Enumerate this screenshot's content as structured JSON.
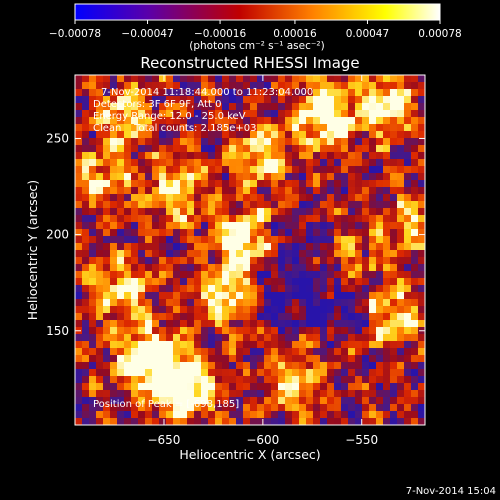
{
  "chart_data": {
    "type": "heatmap",
    "title": "Reconstructed RHESSI Image",
    "xlabel": "Heliocentric X (arcsec)",
    "ylabel": "Heliocentric Y (arcsec)",
    "xlim": [
      -695,
      -518
    ],
    "ylim": [
      101,
      283
    ],
    "x_ticks": [
      -650,
      -600,
      -550
    ],
    "y_ticks": [
      150,
      200,
      250
    ],
    "colorbar": {
      "range": [
        -0.00078,
        0.00078
      ],
      "tick_values": [
        -0.00078,
        -0.00047,
        -0.00016,
        0.00016,
        0.00047,
        0.00078
      ],
      "tick_labels": [
        "-0.00078",
        "-0.00047",
        "-0.00016",
        "0.00016",
        "0.00047",
        "0.00078"
      ],
      "units": "(photons cm⁻² s⁻¹ asec⁻²)",
      "colors": [
        "#0000ff",
        "#5a00aa",
        "#c00000",
        "#ff8000",
        "#ffff00",
        "#ffffff"
      ]
    },
    "annotations": [
      "7-Nov-2014 11:18:44.000 to 11:23:04.000",
      "Detectors: 3F 6F 9F, Att 0",
      "Energy Range: 12.0 - 25.0 keV",
      "Clean    Total counts: 2.185e+03"
    ],
    "peak_label": "Position of Peak = [-698,185]",
    "peak_position": [
      -698,
      185
    ],
    "grid": false
  },
  "footer": {
    "timestamp": "7-Nov-2014 15:04"
  }
}
